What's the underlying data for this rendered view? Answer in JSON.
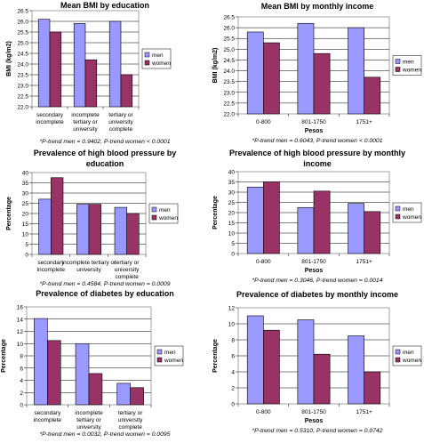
{
  "chart_data": [
    {
      "type": "bar",
      "title": "Mean BMI by education",
      "xlabel": "",
      "ylabel": "BMI (kg/m2)",
      "categories": [
        "secondary incomplete",
        "incomplete tertiary or university",
        "tertiary or university complete"
      ],
      "category_lines": [
        [
          "secondary",
          "incomplete"
        ],
        [
          "incomplete",
          "tertiary or",
          "university"
        ],
        [
          "tertiary or",
          "university",
          "complete"
        ]
      ],
      "series": [
        {
          "name": "men",
          "values": [
            26.1,
            25.9,
            26.0
          ],
          "color": "#9999ff"
        },
        {
          "name": "women",
          "values": [
            25.5,
            24.2,
            23.5
          ],
          "color": "#993366"
        }
      ],
      "ylim": [
        22,
        26.5
      ],
      "ytick_step": 0.5,
      "ytick_decimals": 1,
      "grid": true,
      "legend": "right",
      "footnote": "*P-trend men = 0.9402, P-trend women < 0.0001"
    },
    {
      "type": "bar",
      "title": "Mean BMI by monthly income",
      "xlabel": "Pesos",
      "ylabel": "BMI (kg/m2)",
      "categories": [
        "0-800",
        "801-1750",
        "1751+"
      ],
      "category_lines": [
        [
          "0-800"
        ],
        [
          "801-1750"
        ],
        [
          "1751+"
        ]
      ],
      "series": [
        {
          "name": "men",
          "values": [
            25.8,
            26.2,
            26.0
          ],
          "color": "#9999ff"
        },
        {
          "name": "women",
          "values": [
            25.3,
            24.8,
            23.7
          ],
          "color": "#993366"
        }
      ],
      "ylim": [
        22,
        26.5
      ],
      "ytick_step": 0.5,
      "ytick_decimals": 1,
      "grid": true,
      "legend": "right",
      "footnote": "*P-trend men = 0.6043, P-trend women < 0.0001"
    },
    {
      "type": "bar",
      "title": "Prevalence of high blood pressure by education",
      "title_lines": [
        "Prevalence of high blood pressure by",
        "education"
      ],
      "xlabel": "",
      "ylabel": "Percentage",
      "categories": [
        "secondary incomplete",
        "incomplete tertiary or university",
        "tertiary or university complete"
      ],
      "category_lines": [
        [
          "secondary",
          "incomplete"
        ],
        [
          "incomplete tertiary or",
          "university"
        ],
        [
          "tertiary or",
          "university",
          "complete"
        ]
      ],
      "series": [
        {
          "name": "men",
          "values": [
            27,
            24.5,
            23
          ],
          "color": "#9999ff"
        },
        {
          "name": "women",
          "values": [
            37.5,
            24.5,
            20
          ],
          "color": "#993366"
        }
      ],
      "ylim": [
        0,
        40
      ],
      "ytick_step": 5,
      "ytick_decimals": 0,
      "grid": true,
      "legend": "right",
      "footnote": "*P-trend men = 0.4584, P-trend women = 0.0009"
    },
    {
      "type": "bar",
      "title": "Prevalence of high blood pressure by monthly income",
      "title_lines": [
        "Prevalence of high blood pressure by monthly",
        "income"
      ],
      "xlabel": "Pesos",
      "ylabel": "Percentage",
      "categories": [
        "0-800",
        "801-1750",
        "1751+"
      ],
      "category_lines": [
        [
          "0-800"
        ],
        [
          "801-1750"
        ],
        [
          "1751+"
        ]
      ],
      "series": [
        {
          "name": "men",
          "values": [
            32.5,
            22.5,
            24.5
          ],
          "color": "#9999ff"
        },
        {
          "name": "women",
          "values": [
            35,
            30.5,
            20.5
          ],
          "color": "#993366"
        }
      ],
      "ylim": [
        0,
        40
      ],
      "ytick_step": 5,
      "ytick_decimals": 0,
      "grid": true,
      "legend": "right",
      "footnote": "*P-trend men = 0.3046, P-trend women = 0.0014"
    },
    {
      "type": "bar",
      "title": "Prevalence of diabetes by education",
      "xlabel": "",
      "ylabel": "Percentage",
      "categories": [
        "secondary incomplete",
        "incomplete tertiary or university",
        "tertiary or university complete"
      ],
      "category_lines": [
        [
          "secondary",
          "incomplete"
        ],
        [
          "incomplete",
          "tertiary or",
          "university"
        ],
        [
          "tertiary or",
          "university",
          "complete"
        ]
      ],
      "series": [
        {
          "name": "men",
          "values": [
            14.1,
            10.0,
            3.5
          ],
          "color": "#9999ff"
        },
        {
          "name": "women",
          "values": [
            10.5,
            5.1,
            2.8
          ],
          "color": "#993366"
        }
      ],
      "ylim": [
        0,
        16
      ],
      "ytick_step": 2,
      "ytick_decimals": 0,
      "grid": true,
      "legend": "right",
      "footnote": "*P-trend men = 0.0032, P-trend women = 0.0095"
    },
    {
      "type": "bar",
      "title": "Prevalence of diabetes by monthly income",
      "xlabel": "Pesos",
      "ylabel": "Percentage",
      "categories": [
        "0-800",
        "801-1750",
        "1751+"
      ],
      "category_lines": [
        [
          "0-800"
        ],
        [
          "801-1750"
        ],
        [
          "1751+"
        ]
      ],
      "series": [
        {
          "name": "men",
          "values": [
            11.0,
            10.5,
            8.5
          ],
          "color": "#9999ff"
        },
        {
          "name": "women",
          "values": [
            9.2,
            6.2,
            4.0
          ],
          "color": "#993366"
        }
      ],
      "ylim": [
        0,
        12
      ],
      "ytick_step": 2,
      "ytick_decimals": 0,
      "grid": true,
      "legend": "right",
      "footnote": "*P-trend men = 0.5310, P-trend women = 0.0742"
    }
  ]
}
